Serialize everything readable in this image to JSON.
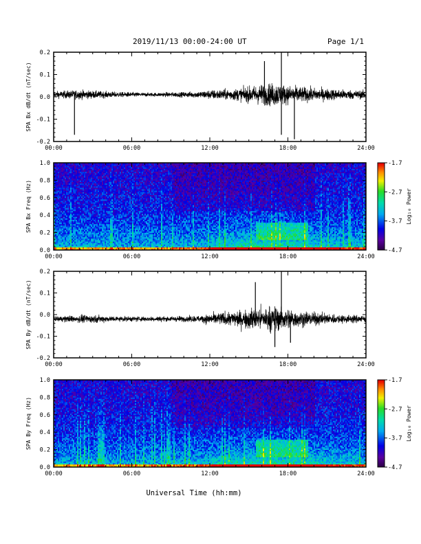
{
  "header": {
    "title": "2019/11/13  00:00-24:00 UT",
    "page": "Page 1/1"
  },
  "xlabel": "Universal Time (hh:mm)",
  "colorbar": {
    "label": "Log₁₀ Power",
    "tick_labels": [
      "-1.7",
      "-2.7",
      "-3.7",
      "-4.7"
    ],
    "range": [
      -4.7,
      -1.7
    ],
    "colormap": "rainbow (purple-blue-cyan-green-yellow-red)"
  },
  "chart_data": [
    {
      "type": "line",
      "id": "bx_dbdt",
      "ylabel": "SPA Bx dB/dt (nT/sec)",
      "xlim": [
        0,
        24
      ],
      "ylim": [
        -0.2,
        0.2
      ],
      "x_tick_labels": [
        "00:00",
        "06:00",
        "12:00",
        "18:00",
        "24:00"
      ],
      "y_tick_labels": [
        "0.2",
        "0.1",
        "0.0",
        "-0.1",
        "-0.2"
      ],
      "series": [
        {
          "color": "#000000",
          "x": [
            0,
            1,
            2,
            3,
            4,
            5,
            6,
            7,
            8,
            9,
            10,
            11,
            12,
            13,
            14,
            15,
            16,
            17,
            18,
            19,
            20,
            21,
            22,
            23,
            24
          ],
          "amplitude": [
            0.025,
            0.03,
            0.035,
            0.03,
            0.025,
            0.02,
            0.018,
            0.015,
            0.015,
            0.018,
            0.02,
            0.025,
            0.035,
            0.04,
            0.045,
            0.06,
            0.08,
            0.09,
            0.07,
            0.06,
            0.05,
            0.045,
            0.04,
            0.035,
            0.03
          ],
          "offset": 0.01,
          "spikes": [
            {
              "x": 1.6,
              "y": -0.17
            },
            {
              "x": 16.2,
              "y": 0.16
            },
            {
              "x": 17.5,
              "y": 0.2
            },
            {
              "x": 17.5,
              "y": -0.17
            },
            {
              "x": 18.5,
              "y": -0.19
            }
          ]
        }
      ]
    },
    {
      "type": "heatmap",
      "id": "bx_freq",
      "ylabel": "SPA Bx Freq (Hz)",
      "xlim": [
        0,
        24
      ],
      "ylim": [
        0,
        1.0
      ],
      "x_tick_labels": [
        "00:00",
        "06:00",
        "12:00",
        "18:00",
        "24:00"
      ],
      "y_tick_labels": [
        "1.0",
        "0.8",
        "0.6",
        "0.4",
        "0.2",
        "0.0"
      ],
      "zlim": [
        -4.7,
        -1.7
      ]
    },
    {
      "type": "line",
      "id": "by_dbdt",
      "ylabel": "SPA By dB/dt (nT/sec)",
      "xlim": [
        0,
        24
      ],
      "ylim": [
        -0.2,
        0.2
      ],
      "x_tick_labels": [
        "00:00",
        "06:00",
        "12:00",
        "18:00",
        "24:00"
      ],
      "y_tick_labels": [
        "0.2",
        "0.1",
        "0.0",
        "-0.1",
        "-0.2"
      ],
      "series": [
        {
          "color": "#000000",
          "x": [
            0,
            1,
            2,
            3,
            4,
            5,
            6,
            7,
            8,
            9,
            10,
            11,
            12,
            13,
            14,
            15,
            16,
            17,
            18,
            19,
            20,
            21,
            22,
            23,
            24
          ],
          "amplitude": [
            0.02,
            0.025,
            0.03,
            0.03,
            0.025,
            0.02,
            0.02,
            0.02,
            0.02,
            0.02,
            0.022,
            0.025,
            0.04,
            0.05,
            0.06,
            0.08,
            0.09,
            0.1,
            0.08,
            0.06,
            0.05,
            0.04,
            0.035,
            0.03,
            0.03
          ],
          "offset": -0.02,
          "spikes": [
            {
              "x": 15.5,
              "y": 0.15
            },
            {
              "x": 17.5,
              "y": 0.2
            },
            {
              "x": 17.0,
              "y": -0.15
            },
            {
              "x": 18.2,
              "y": -0.13
            }
          ]
        }
      ]
    },
    {
      "type": "heatmap",
      "id": "by_freq",
      "ylabel": "SPA By Freq (Hz)",
      "xlim": [
        0,
        24
      ],
      "ylim": [
        0,
        1.0
      ],
      "x_tick_labels": [
        "00:00",
        "06:00",
        "12:00",
        "18:00",
        "24:00"
      ],
      "y_tick_labels": [
        "1.0",
        "0.8",
        "0.6",
        "0.4",
        "0.2",
        "0.0"
      ],
      "zlim": [
        -4.7,
        -1.7
      ]
    }
  ]
}
